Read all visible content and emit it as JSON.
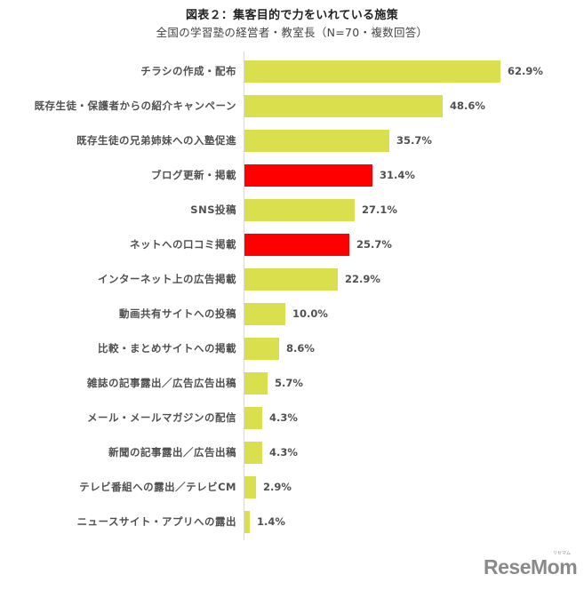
{
  "header": {
    "title": "図表２：集客目的で力をいれている施策",
    "subtitle": "全国の学習塾の経営者・教室長（N=70・複数回答）"
  },
  "colors": {
    "default_bar": "#dadf4d",
    "highlight_bar": "#ff0000",
    "axis": "#d9d9d9"
  },
  "logo": {
    "text": "ReseMom",
    "ruby": "リセマム"
  },
  "chart_data": {
    "type": "bar",
    "orientation": "horizontal",
    "title": "図表２：集客目的で力をいれている施策",
    "subtitle": "全国の学習塾の経営者・教室長（N=70・複数回答）",
    "xlabel": "",
    "ylabel": "",
    "unit": "%",
    "grid": false,
    "legend": null,
    "categories": [
      "チラシの作成・配布",
      "既存生徒・保護者からの紹介キャンペーン",
      "既存生徒の兄弟姉妹への入塾促進",
      "ブログ更新・掲載",
      "SNS投稿",
      "ネットへの口コミ掲載",
      "インターネット上の広告掲載",
      "動画共有サイトへの投稿",
      "比較・まとめサイトへの掲載",
      "雑誌の記事露出／広告広告出稿",
      "メール・メールマガジンの配信",
      "新聞の記事露出／広告出稿",
      "テレビ番組への露出／テレビCM",
      "ニュースサイト・アプリへの露出"
    ],
    "values": [
      62.9,
      48.6,
      35.7,
      31.4,
      27.1,
      25.7,
      22.9,
      10.0,
      8.6,
      5.7,
      4.3,
      4.3,
      2.9,
      1.4
    ],
    "value_labels": [
      "62.9%",
      "48.6%",
      "35.7%",
      "31.4%",
      "27.1%",
      "25.7%",
      "22.9%",
      "10.0%",
      "8.6%",
      "5.7%",
      "4.3%",
      "4.3%",
      "2.9%",
      "1.4%"
    ],
    "highlighted": [
      false,
      false,
      false,
      true,
      false,
      true,
      false,
      false,
      false,
      false,
      false,
      false,
      false,
      false
    ]
  }
}
